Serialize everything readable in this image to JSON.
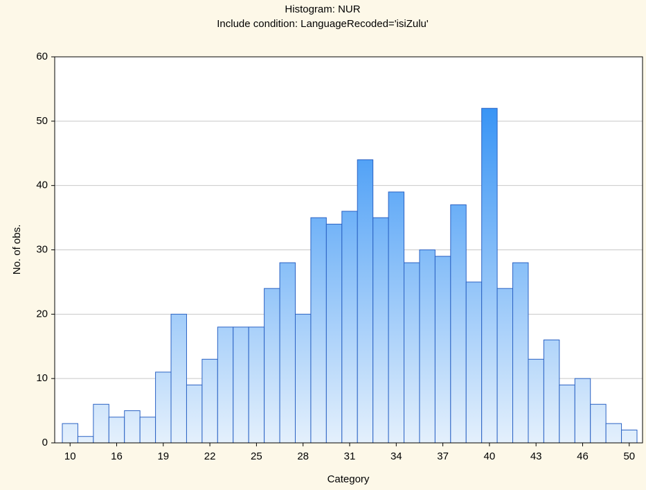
{
  "chart_data": {
    "type": "bar",
    "title": "Histogram: NUR",
    "subtitle": "Include condition: LanguageRecoded='isiZulu'",
    "x_label": "Category",
    "y_label": "No. of obs.",
    "categories": [
      "10",
      null,
      null,
      "16",
      null,
      null,
      "19",
      null,
      null,
      "22",
      null,
      null,
      "25",
      null,
      null,
      "28",
      null,
      null,
      "31",
      null,
      null,
      "34",
      null,
      null,
      "37",
      null,
      null,
      "40",
      null,
      null,
      "43",
      null,
      null,
      "46",
      null,
      null,
      "50"
    ],
    "values": [
      3,
      1,
      6,
      4,
      5,
      4,
      11,
      20,
      9,
      13,
      18,
      18,
      18,
      24,
      28,
      20,
      35,
      34,
      36,
      44,
      35,
      39,
      28,
      30,
      29,
      37,
      25,
      52,
      24,
      28,
      13,
      16,
      9,
      10,
      6,
      3,
      2
    ],
    "colors": {
      "bar_top": "#1e86f4",
      "bar_bottom": "#e4f0fc",
      "bar_edge": "#2a62c4"
    },
    "ylim": [
      0,
      60
    ],
    "yticks": [
      0,
      10,
      20,
      30,
      40,
      50,
      60
    ],
    "grid": true
  }
}
